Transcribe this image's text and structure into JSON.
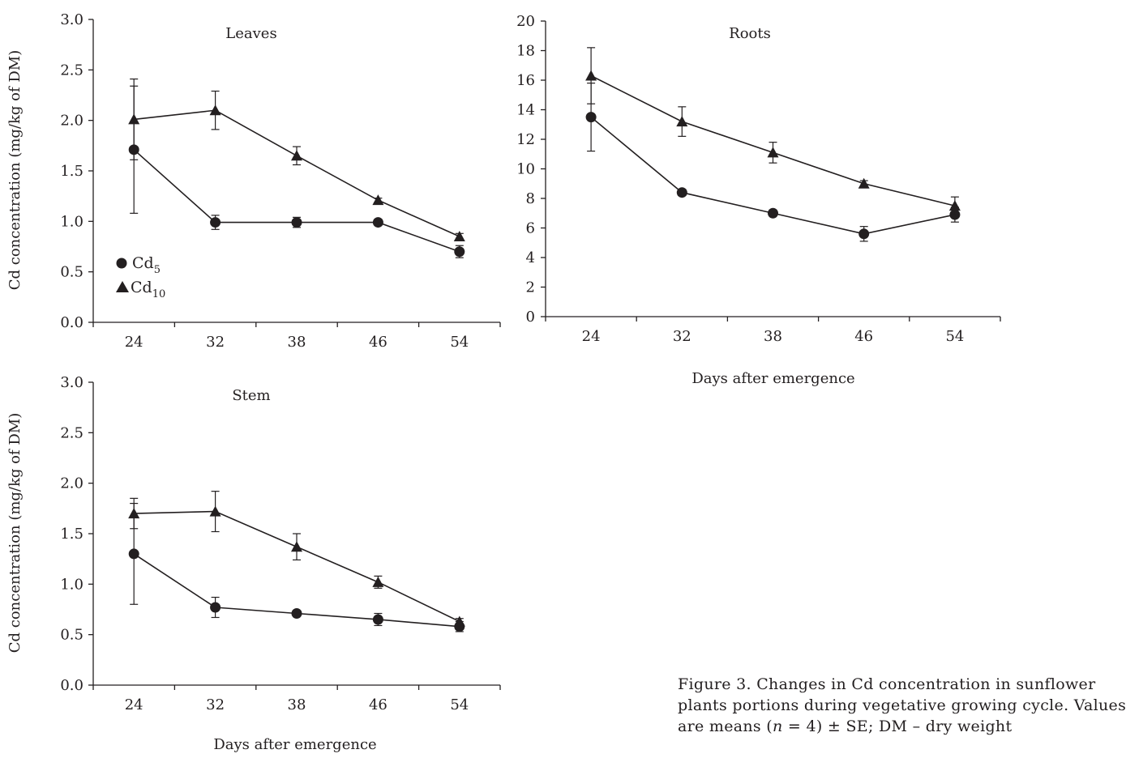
{
  "chart_data": [
    {
      "type": "line",
      "id": "leaves",
      "title": "Leaves",
      "xlabel": "",
      "ylabel": "Cd concentration (mg/kg of DM)",
      "categories": [
        "24",
        "32",
        "38",
        "46",
        "54"
      ],
      "ylim": [
        0,
        3
      ],
      "yticks": [
        "0.0",
        "0.5",
        "1.0",
        "1.5",
        "2.0",
        "2.5",
        "3.0"
      ],
      "yticks_values": [
        0,
        0.5,
        1,
        1.5,
        2,
        2.5,
        3
      ],
      "legend": "inside lower-left",
      "series": [
        {
          "name": "Cd5",
          "marker": "circle",
          "values": [
            1.71,
            0.99,
            0.99,
            0.99,
            0.7
          ],
          "err": [
            0.63,
            0.07,
            0.05,
            0.03,
            0.06
          ]
        },
        {
          "name": "Cd10",
          "marker": "triangle",
          "values": [
            2.01,
            2.1,
            1.65,
            1.21,
            0.85
          ],
          "err": [
            0.4,
            0.19,
            0.09,
            0.02,
            0.03
          ]
        }
      ]
    },
    {
      "type": "line",
      "id": "roots",
      "title": "Roots",
      "xlabel": "Days after emergence",
      "ylabel": "",
      "categories": [
        "24",
        "32",
        "38",
        "46",
        "54"
      ],
      "ylim": [
        0,
        20
      ],
      "yticks": [
        "0",
        "2",
        "4",
        "6",
        "8",
        "10",
        "12",
        "14",
        "16",
        "18",
        "20"
      ],
      "yticks_values": [
        0,
        2,
        4,
        6,
        8,
        10,
        12,
        14,
        16,
        18,
        20
      ],
      "series": [
        {
          "name": "Cd5",
          "marker": "circle",
          "values": [
            13.5,
            8.4,
            7.0,
            5.6,
            6.9
          ],
          "err": [
            2.3,
            0.2,
            0.2,
            0.5,
            0.5
          ]
        },
        {
          "name": "Cd10",
          "marker": "triangle",
          "values": [
            16.3,
            13.2,
            11.1,
            9.0,
            7.5
          ],
          "err": [
            1.9,
            1.0,
            0.7,
            0.2,
            0.6
          ]
        }
      ]
    },
    {
      "type": "line",
      "id": "stem",
      "title": "Stem",
      "xlabel": "Days after emergence",
      "ylabel": "Cd concentration (mg/kg of DM)",
      "categories": [
        "24",
        "32",
        "38",
        "46",
        "54"
      ],
      "ylim": [
        0,
        3
      ],
      "yticks": [
        "0.0",
        "0.5",
        "1.0",
        "1.5",
        "2.0",
        "2.5",
        "3.0"
      ],
      "yticks_values": [
        0,
        0.5,
        1,
        1.5,
        2,
        2.5,
        3
      ],
      "series": [
        {
          "name": "Cd5",
          "marker": "circle",
          "values": [
            1.3,
            0.77,
            0.71,
            0.65,
            0.58
          ],
          "err": [
            0.5,
            0.1,
            0.02,
            0.06,
            0.05
          ]
        },
        {
          "name": "Cd10",
          "marker": "triangle",
          "values": [
            1.7,
            1.72,
            1.37,
            1.02,
            0.63
          ],
          "err": [
            0.15,
            0.2,
            0.13,
            0.06,
            0.03
          ]
        }
      ]
    }
  ],
  "legend": {
    "cd5_base": "Cd",
    "cd5_sub": "5",
    "cd10_base": "Cd",
    "cd10_sub": "10"
  },
  "caption": {
    "line1": "Figure 3. Changes in Cd concentration in sunflower",
    "line2": "plants portions during vegetative growing cycle. Values",
    "line3_a": "are means (",
    "line3_n": "n",
    "line3_b": " = 4) ± SE; DM – dry weight"
  },
  "colors": {
    "ink": "#231f20"
  }
}
